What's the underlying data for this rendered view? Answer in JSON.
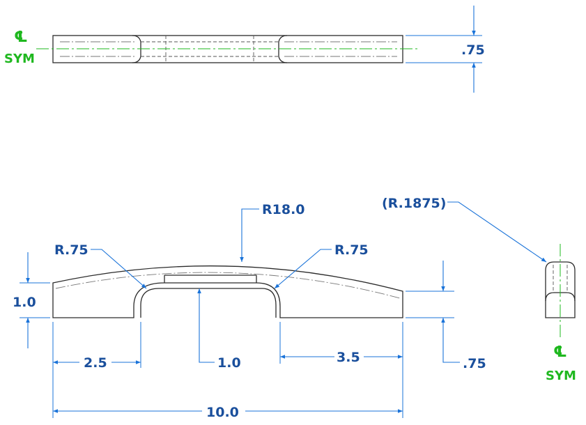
{
  "top_view": {
    "centerline_symbol": "℄",
    "centerline_label": "SYM",
    "thickness_dim": ".75"
  },
  "front_view": {
    "arc_radius": "R18.0",
    "left_fillet": "R.75",
    "right_fillet": "R.75",
    "height_dim": "1.0",
    "left_leg_dim": "2.5",
    "slot_depth_dim": "1.0",
    "right_leg_dim": "3.5",
    "end_height_dim": ".75",
    "overall_length": "10.0"
  },
  "side_view": {
    "edge_radius": "(R.1875)",
    "centerline_symbol": "℄",
    "centerline_label": "SYM"
  },
  "colors": {
    "dimension": "#1a73d9",
    "dimension_text": "#1a4f9c",
    "centerline": "#1fb81f",
    "outline": "#2b2b2b"
  }
}
